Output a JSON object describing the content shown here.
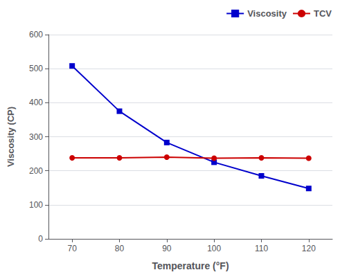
{
  "chart_data": {
    "type": "line",
    "xlabel": "Temperature (°F)",
    "ylabel": "Viscosity (CP)",
    "x": [
      70,
      80,
      90,
      100,
      110,
      120
    ],
    "series": [
      {
        "name": "Viscosity",
        "color": "#0000CC",
        "marker": "square",
        "values": [
          508,
          375,
          283,
          225,
          185,
          148
        ]
      },
      {
        "name": "TCV",
        "color": "#CC0000",
        "marker": "circle",
        "values": [
          238,
          238,
          240,
          237,
          238,
          237
        ]
      }
    ],
    "xlim": [
      65,
      125
    ],
    "xticks": [
      70,
      80,
      90,
      100,
      110,
      120
    ],
    "ylim": [
      0,
      600
    ],
    "yticks": [
      0,
      100,
      200,
      300,
      400,
      500,
      600
    ],
    "grid": true,
    "legend": "upper right"
  }
}
